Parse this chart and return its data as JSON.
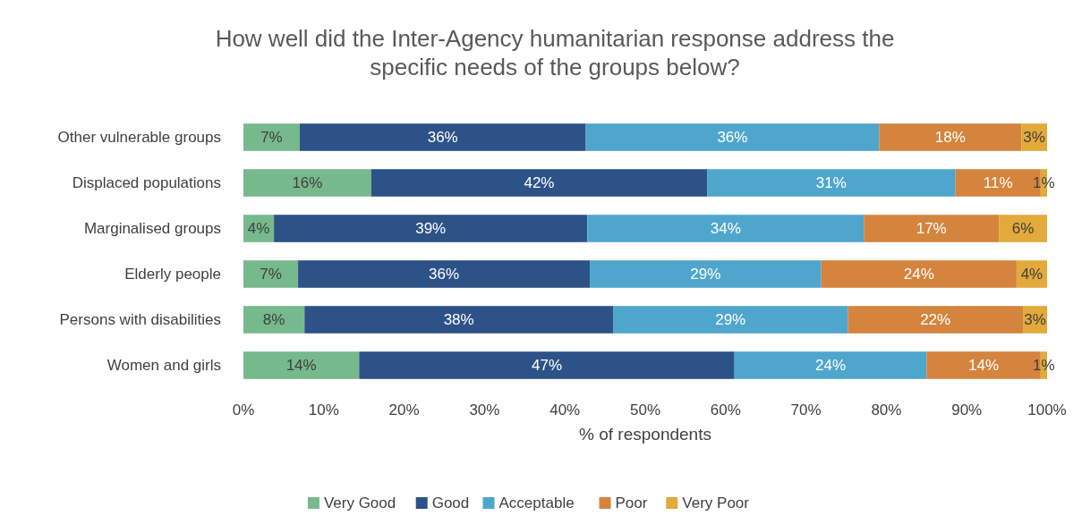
{
  "chart_data": {
    "type": "bar",
    "orientation": "horizontal",
    "stacked": true,
    "title": "How well did the Inter-Agency humanitarian response address the specific needs of the groups below?",
    "xlabel": "% of respondents",
    "categories": [
      "Other vulnerable groups",
      "Displaced populations",
      "Marginalised groups",
      "Elderly people",
      "Persons with disabilities",
      "Women and girls"
    ],
    "series": [
      {
        "name": "Very Good",
        "color": "#76b98c",
        "values": [
          7.0,
          15.9,
          3.8,
          6.8,
          7.6,
          14.4
        ],
        "value_labels": [
          "7%",
          "16%",
          "4%",
          "7%",
          "8%",
          "14%"
        ]
      },
      {
        "name": "Good",
        "color": "#2c5288",
        "values": [
          35.6,
          41.8,
          39.0,
          36.3,
          38.4,
          46.7
        ],
        "value_labels": [
          "36%",
          "42%",
          "39%",
          "36%",
          "38%",
          "47%"
        ]
      },
      {
        "name": "Acceptable",
        "color": "#4fa6cc",
        "values": [
          36.5,
          30.9,
          34.4,
          28.8,
          29.2,
          23.9
        ],
        "value_labels": [
          "36%",
          "31%",
          "34%",
          "29%",
          "29%",
          "24%"
        ]
      },
      {
        "name": "Poor",
        "color": "#d5843d",
        "values": [
          17.7,
          10.6,
          16.8,
          24.3,
          21.8,
          14.2
        ],
        "value_labels": [
          "18%",
          "11%",
          "17%",
          "24%",
          "22%",
          "14%"
        ]
      },
      {
        "name": "Very Poor",
        "color": "#e1aa3a",
        "values": [
          3.2,
          0.8,
          6.0,
          3.8,
          3.0,
          0.8
        ],
        "value_labels": [
          "3%",
          "1%",
          "6%",
          "4%",
          "3%",
          "1%"
        ]
      }
    ],
    "xlim": [
      0,
      100
    ],
    "xticks": [
      {
        "value": 0,
        "label": "0%"
      },
      {
        "value": 10,
        "label": "10%"
      },
      {
        "value": 20,
        "label": "20%"
      },
      {
        "value": 30,
        "label": "30%"
      },
      {
        "value": 40,
        "label": "40%"
      },
      {
        "value": 50,
        "label": "50%"
      },
      {
        "value": 60,
        "label": "60%"
      },
      {
        "value": 70,
        "label": "70%"
      },
      {
        "value": 80,
        "label": "80%"
      },
      {
        "value": 90,
        "label": "90%"
      },
      {
        "value": 100,
        "label": "100%"
      }
    ],
    "legend": "bottom",
    "grid": false
  }
}
